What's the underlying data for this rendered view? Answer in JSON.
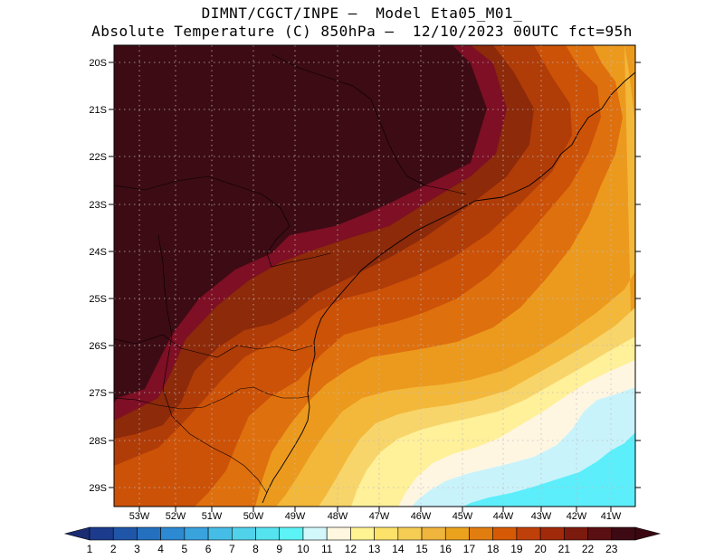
{
  "title": {
    "line1": "DIMNT/CGCT/INPE –  Model Eta05_M01_",
    "line2": "Absolute Temperature (C) 850hPa –  12/10/2023 00UTC fct=95h"
  },
  "lat_labels": [
    "20S",
    "21S",
    "22S",
    "23S",
    "24S",
    "25S",
    "26S",
    "27S",
    "28S",
    "29S"
  ],
  "lon_labels": [
    "53W",
    "52W",
    "51W",
    "50W",
    "49W",
    "48W",
    "47W",
    "46W",
    "45W",
    "44W",
    "43W",
    "42W",
    "41W"
  ],
  "colorbar": {
    "labels": [
      "1",
      "2",
      "3",
      "4",
      "5",
      "6",
      "7",
      "8",
      "9",
      "10",
      "11",
      "12",
      "13",
      "14",
      "15",
      "16",
      "17",
      "18",
      "19",
      "20",
      "21",
      "22",
      "23"
    ],
    "colors": [
      "#1c3b8c",
      "#1f56a8",
      "#2470bf",
      "#2d8ad2",
      "#39a3de",
      "#46bde6",
      "#50d2ea",
      "#55e3ef",
      "#5cf3f6",
      "#d2f8fb",
      "#fff7df",
      "#fff392",
      "#fde26a",
      "#f5cd55",
      "#efb53c",
      "#eba21c",
      "#e27d10",
      "#d65a06",
      "#c0400a",
      "#a02a0a",
      "#7d1a0e",
      "#5a0f12",
      "#3d0a14"
    ],
    "min_color": "#1a2d72",
    "max_color": "#3a0710"
  },
  "colors": {
    "deep_maroon": "#3d0b14",
    "crimson": "#7e0f24",
    "dark_red_brown": "#8c2a0a",
    "red_orange": "#b03c08",
    "orange_red": "#cc5208",
    "orange": "#df700e",
    "light_orange": "#ec9a1e",
    "amber": "#f3b83a",
    "yellow": "#f8d56a",
    "light_yellow": "#fff09a",
    "cream": "#fff6e2",
    "pale_cyan": "#c9f3fb",
    "cyan": "#5deefb"
  }
}
